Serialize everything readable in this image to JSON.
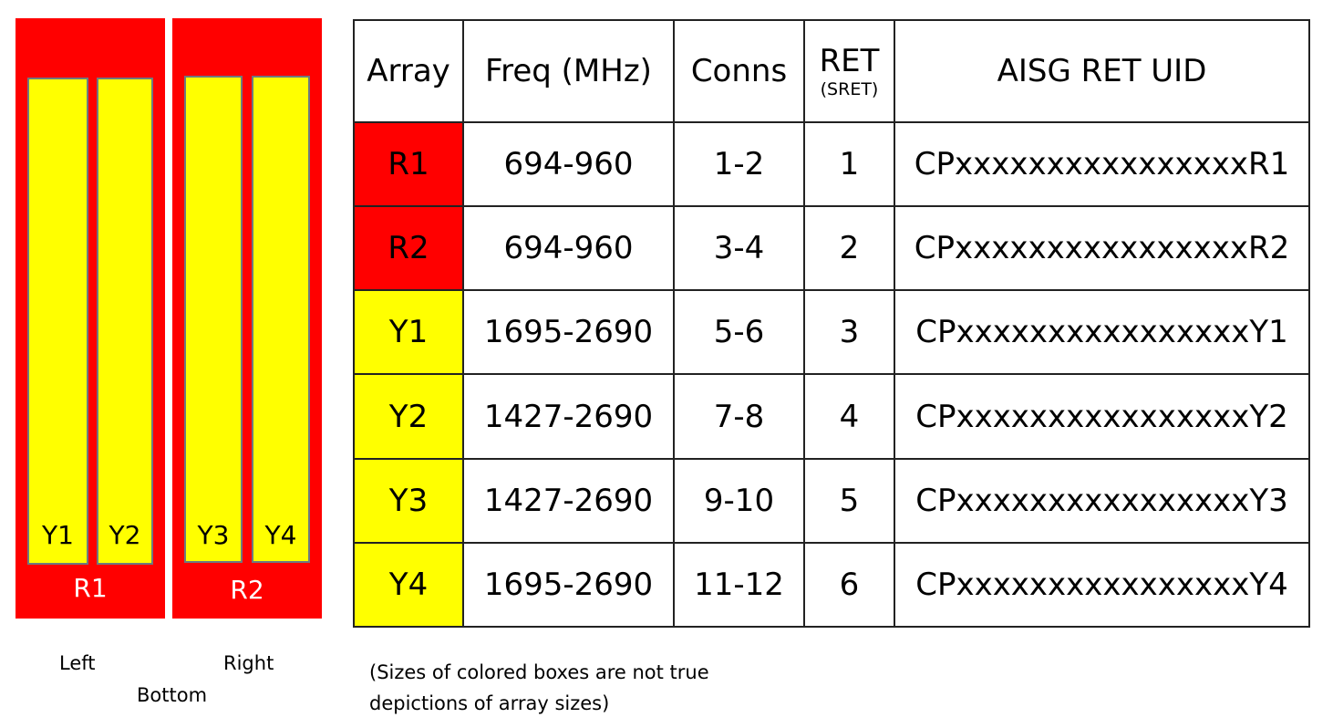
{
  "diagram": {
    "panels": [
      {
        "label": "R1",
        "arrays": [
          "Y1",
          "Y2"
        ]
      },
      {
        "label": "R2",
        "arrays": [
          "Y3",
          "Y4"
        ]
      }
    ],
    "captions": {
      "left": "Left",
      "right": "Right",
      "bottom": "Bottom"
    },
    "colors": {
      "red": "#ff0000",
      "yellow": "#ffff00"
    }
  },
  "table": {
    "headers": {
      "array": "Array",
      "freq": "Freq (MHz)",
      "conns": "Conns",
      "ret": "RET",
      "ret_sub": "(SRET)",
      "uid": "AISG RET UID"
    },
    "rows": [
      {
        "array": "R1",
        "freq": "694-960",
        "conns": "1-2",
        "ret": "1",
        "uid": "CPxxxxxxxxxxxxxxxxR1",
        "color": "#ff0000"
      },
      {
        "array": "R2",
        "freq": "694-960",
        "conns": "3-4",
        "ret": "2",
        "uid": "CPxxxxxxxxxxxxxxxxR2",
        "color": "#ff0000"
      },
      {
        "array": "Y1",
        "freq": "1695-2690",
        "conns": "5-6",
        "ret": "3",
        "uid": "CPxxxxxxxxxxxxxxxxY1",
        "color": "#ffff00"
      },
      {
        "array": "Y2",
        "freq": "1427-2690",
        "conns": "7-8",
        "ret": "4",
        "uid": "CPxxxxxxxxxxxxxxxxY2",
        "color": "#ffff00"
      },
      {
        "array": "Y3",
        "freq": "1427-2690",
        "conns": "9-10",
        "ret": "5",
        "uid": "CPxxxxxxxxxxxxxxxxY3",
        "color": "#ffff00"
      },
      {
        "array": "Y4",
        "freq": "1695-2690",
        "conns": "11-12",
        "ret": "6",
        "uid": "CPxxxxxxxxxxxxxxxxY4",
        "color": "#ffff00"
      }
    ]
  },
  "note": "(Sizes of colored boxes are not true depictions of array sizes)"
}
